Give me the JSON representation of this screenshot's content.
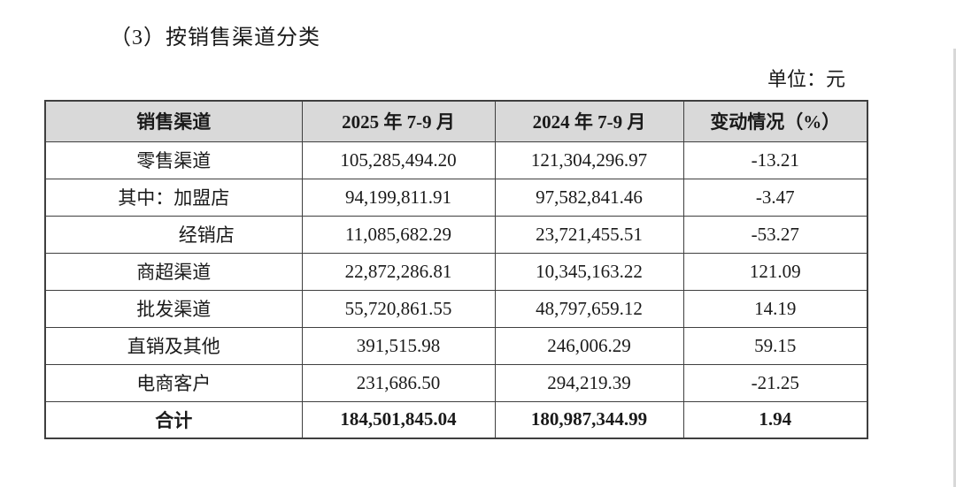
{
  "document": {
    "section_title": "（3）按销售渠道分类",
    "unit_label": "单位：元"
  },
  "table": {
    "headers": [
      "销售渠道",
      "2025 年 7-9 月",
      "2024 年 7-9 月",
      "变动情况（%）"
    ],
    "rows": [
      {
        "channel": "零售渠道",
        "period_2025": "105,285,494.20",
        "period_2024": "121,304,296.97",
        "change_pct": "-13.21"
      },
      {
        "channel": "其中：加盟店",
        "period_2025": "94,199,811.91",
        "period_2024": "97,582,841.46",
        "change_pct": "-3.47"
      },
      {
        "channel": "经销店",
        "period_2025": "11,085,682.29",
        "period_2024": "23,721,455.51",
        "change_pct": "-53.27"
      },
      {
        "channel": "商超渠道",
        "period_2025": "22,872,286.81",
        "period_2024": "10,345,163.22",
        "change_pct": "121.09"
      },
      {
        "channel": "批发渠道",
        "period_2025": "55,720,861.55",
        "period_2024": "48,797,659.12",
        "change_pct": "14.19"
      },
      {
        "channel": "直销及其他",
        "period_2025": "391,515.98",
        "period_2024": "246,006.29",
        "change_pct": "59.15"
      },
      {
        "channel": "电商客户",
        "period_2025": "231,686.50",
        "period_2024": "294,219.39",
        "change_pct": "-21.25"
      }
    ],
    "total_row": {
      "channel": "合计",
      "period_2025": "184,501,845.04",
      "period_2024": "180,987,344.99",
      "change_pct": "1.94"
    },
    "colors": {
      "header_bg": "#d9d9d9",
      "border": "#3f3f3f",
      "text": "#1a1a1a",
      "page_bg": "#ffffff"
    }
  }
}
